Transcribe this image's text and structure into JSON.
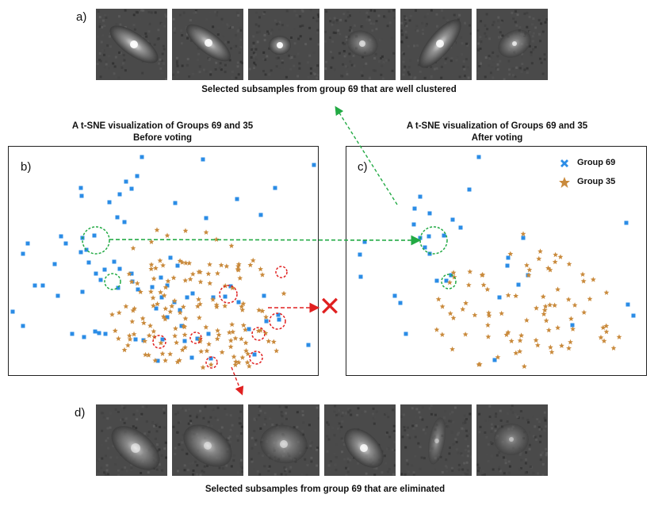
{
  "panels": {
    "a": {
      "letter": "a)",
      "caption": "Selected subsamples from group 69 that are well clustered"
    },
    "b": {
      "letter": "b)",
      "title_line1": "A t-SNE visualization of Groups 69 and 35",
      "title_line2": "Before voting"
    },
    "c": {
      "letter": "c)",
      "title_line1": "A t-SNE visualization of Groups 69 and 35",
      "title_line2": "After voting"
    },
    "d": {
      "letter": "d)",
      "caption": "Selected subsamples from group 69 that are eliminated"
    }
  },
  "legend": {
    "items": [
      {
        "label": "Group 69",
        "marker": "square",
        "color": "#2b8ce6"
      },
      {
        "label": "Group 35",
        "marker": "star",
        "color": "#c98a3c"
      }
    ]
  },
  "colors": {
    "group69": "#2b8ce6",
    "group35": "#c98a3c",
    "kept_highlight": "#22aa44",
    "eliminated_highlight": "#e02020"
  },
  "annotations": {
    "eliminated_marker_symbol": "✕"
  },
  "thumbnails": {
    "top": [
      {
        "name": "thumb-a-1",
        "kind": "elongated galaxy"
      },
      {
        "name": "thumb-a-2",
        "kind": "elongated galaxy"
      },
      {
        "name": "thumb-a-3",
        "kind": "compact source"
      },
      {
        "name": "thumb-a-4",
        "kind": "noisy source"
      },
      {
        "name": "thumb-a-5",
        "kind": "elongated galaxy"
      },
      {
        "name": "thumb-a-6",
        "kind": "faint source"
      }
    ],
    "bottom": [
      {
        "name": "thumb-d-1",
        "kind": "diffuse blob"
      },
      {
        "name": "thumb-d-2",
        "kind": "diffuse blob"
      },
      {
        "name": "thumb-d-3",
        "kind": "noisy blob"
      },
      {
        "name": "thumb-d-4",
        "kind": "compact source"
      },
      {
        "name": "thumb-d-5",
        "kind": "faint streak"
      },
      {
        "name": "thumb-d-6",
        "kind": "noise"
      }
    ]
  }
}
